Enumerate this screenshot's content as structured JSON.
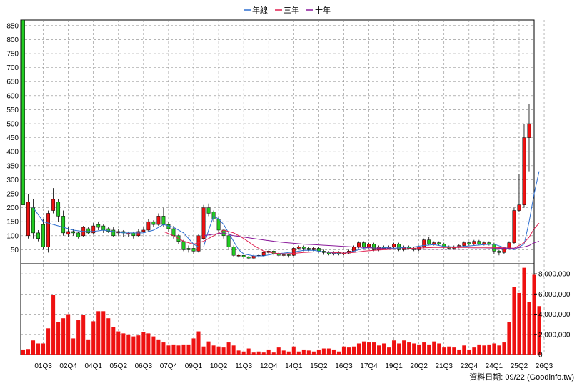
{
  "chart_data": {
    "type": "candlestick",
    "legend": [
      {
        "name": "年線",
        "color": "#2f6fd0"
      },
      {
        "name": "三年",
        "color": "#e02050"
      },
      {
        "name": "十年",
        "color": "#8a1a9a"
      }
    ],
    "legend_placement": "top-center",
    "grid": true,
    "colors": {
      "up": "#ee1111",
      "down": "#22cc22",
      "volume": "#ee1111"
    },
    "price_axis": {
      "ticks": [
        50,
        100,
        150,
        200,
        250,
        300,
        350,
        400,
        450,
        500,
        550,
        600,
        650,
        700,
        750,
        800,
        850
      ],
      "range": [
        0,
        870
      ]
    },
    "volume_axis": {
      "ticks": [
        2000000,
        4000000,
        6000000,
        8000000
      ],
      "tick_labels": [
        "2,000,000",
        "4,000,000",
        "6,000,000",
        "8,000,000"
      ],
      "range": [
        0,
        9000000
      ]
    },
    "x_ticks": [
      {
        "label": "01Q3",
        "i": 4
      },
      {
        "label": "02Q4",
        "i": 9
      },
      {
        "label": "04Q1",
        "i": 14
      },
      {
        "label": "05Q2",
        "i": 19
      },
      {
        "label": "06Q3",
        "i": 24
      },
      {
        "label": "07Q4",
        "i": 29
      },
      {
        "label": "09Q1",
        "i": 34
      },
      {
        "label": "10Q2",
        "i": 39
      },
      {
        "label": "11Q3",
        "i": 44
      },
      {
        "label": "12Q4",
        "i": 49
      },
      {
        "label": "14Q1",
        "i": 54
      },
      {
        "label": "15Q2",
        "i": 59
      },
      {
        "label": "16Q3",
        "i": 64
      },
      {
        "label": "17Q4",
        "i": 69
      },
      {
        "label": "19Q1",
        "i": 74
      },
      {
        "label": "20Q2",
        "i": 79
      },
      {
        "label": "21Q3",
        "i": 84
      },
      {
        "label": "22Q4",
        "i": 89
      },
      {
        "label": "24Q1",
        "i": 94
      },
      {
        "label": "25Q2",
        "i": 99
      },
      {
        "label": "26Q3",
        "i": 104
      }
    ],
    "candles": [
      [
        870,
        210,
        870,
        210
      ],
      [
        100,
        220,
        250,
        90
      ],
      [
        200,
        110,
        230,
        90
      ],
      [
        110,
        90,
        120,
        80
      ],
      [
        140,
        60,
        160,
        50
      ],
      [
        60,
        180,
        190,
        40
      ],
      [
        190,
        230,
        270,
        180
      ],
      [
        220,
        170,
        230,
        150
      ],
      [
        170,
        110,
        190,
        100
      ],
      [
        105,
        115,
        130,
        95
      ],
      [
        115,
        110,
        125,
        100
      ],
      [
        110,
        95,
        115,
        90
      ],
      [
        100,
        130,
        135,
        95
      ],
      [
        125,
        110,
        130,
        105
      ],
      [
        110,
        135,
        145,
        105
      ],
      [
        140,
        130,
        150,
        120
      ],
      [
        135,
        120,
        140,
        110
      ],
      [
        125,
        115,
        130,
        110
      ],
      [
        120,
        100,
        130,
        95
      ],
      [
        110,
        115,
        125,
        100
      ],
      [
        115,
        110,
        120,
        95
      ],
      [
        105,
        110,
        115,
        95
      ],
      [
        110,
        100,
        115,
        90
      ],
      [
        100,
        115,
        125,
        95
      ],
      [
        115,
        120,
        130,
        110
      ],
      [
        120,
        150,
        160,
        115
      ],
      [
        150,
        140,
        155,
        130
      ],
      [
        140,
        170,
        180,
        135
      ],
      [
        170,
        140,
        200,
        130
      ],
      [
        140,
        125,
        150,
        115
      ],
      [
        125,
        100,
        135,
        90
      ],
      [
        100,
        80,
        105,
        70
      ],
      [
        80,
        50,
        85,
        45
      ],
      [
        55,
        50,
        65,
        40
      ],
      [
        55,
        45,
        70,
        35
      ],
      [
        45,
        100,
        105,
        40
      ],
      [
        90,
        200,
        210,
        85
      ],
      [
        200,
        180,
        215,
        170
      ],
      [
        185,
        160,
        190,
        150
      ],
      [
        160,
        120,
        170,
        110
      ],
      [
        120,
        100,
        125,
        90
      ],
      [
        100,
        60,
        110,
        50
      ],
      [
        60,
        30,
        65,
        25
      ],
      [
        30,
        30,
        35,
        22
      ],
      [
        30,
        25,
        32,
        18
      ],
      [
        25,
        20,
        28,
        15
      ],
      [
        20,
        28,
        32,
        15
      ],
      [
        28,
        30,
        35,
        22
      ],
      [
        30,
        40,
        45,
        25
      ],
      [
        40,
        45,
        50,
        35
      ],
      [
        45,
        35,
        50,
        30
      ],
      [
        35,
        30,
        40,
        25
      ],
      [
        30,
        32,
        35,
        25
      ],
      [
        32,
        30,
        35,
        22
      ],
      [
        30,
        55,
        58,
        28
      ],
      [
        55,
        60,
        65,
        50
      ],
      [
        60,
        55,
        65,
        45
      ],
      [
        55,
        50,
        60,
        45
      ],
      [
        50,
        55,
        60,
        45
      ],
      [
        55,
        45,
        60,
        40
      ],
      [
        45,
        40,
        50,
        32
      ],
      [
        40,
        35,
        45,
        30
      ],
      [
        35,
        40,
        45,
        30
      ],
      [
        40,
        35,
        45,
        30
      ],
      [
        35,
        38,
        42,
        30
      ],
      [
        38,
        45,
        50,
        35
      ],
      [
        45,
        60,
        65,
        40
      ],
      [
        60,
        75,
        80,
        55
      ],
      [
        75,
        60,
        80,
        55
      ],
      [
        60,
        70,
        75,
        55
      ],
      [
        70,
        50,
        75,
        45
      ],
      [
        50,
        60,
        65,
        45
      ],
      [
        60,
        55,
        65,
        50
      ],
      [
        55,
        60,
        65,
        50
      ],
      [
        60,
        70,
        75,
        55
      ],
      [
        70,
        50,
        75,
        45
      ],
      [
        50,
        60,
        65,
        45
      ],
      [
        60,
        55,
        65,
        50
      ],
      [
        55,
        50,
        60,
        45
      ],
      [
        50,
        60,
        65,
        45
      ],
      [
        60,
        85,
        90,
        55
      ],
      [
        85,
        70,
        95,
        65
      ],
      [
        70,
        75,
        80,
        65
      ],
      [
        75,
        70,
        80,
        65
      ],
      [
        70,
        60,
        75,
        55
      ],
      [
        60,
        55,
        65,
        50
      ],
      [
        55,
        60,
        65,
        50
      ],
      [
        60,
        65,
        70,
        55
      ],
      [
        65,
        75,
        80,
        60
      ],
      [
        75,
        70,
        80,
        65
      ],
      [
        70,
        80,
        85,
        65
      ],
      [
        80,
        70,
        85,
        65
      ],
      [
        70,
        75,
        80,
        65
      ],
      [
        75,
        70,
        80,
        65
      ],
      [
        70,
        45,
        75,
        35
      ],
      [
        45,
        40,
        50,
        30
      ],
      [
        40,
        55,
        60,
        35
      ],
      [
        55,
        75,
        80,
        50
      ],
      [
        75,
        190,
        200,
        70
      ],
      [
        190,
        210,
        320,
        185
      ],
      [
        210,
        450,
        500,
        200
      ],
      [
        450,
        500,
        570,
        330
      ]
    ],
    "volumes": [
      500000,
      550000,
      1400000,
      1100000,
      1100000,
      2600000,
      5900000,
      3200000,
      3600000,
      4000000,
      1600000,
      3400000,
      3900000,
      1500000,
      3300000,
      4300000,
      4300000,
      3600000,
      2700000,
      2300000,
      2100000,
      2000000,
      1800000,
      1900000,
      2200000,
      2100000,
      1800000,
      1500000,
      1200000,
      900000,
      1000000,
      900000,
      1000000,
      1000000,
      1600000,
      2300000,
      800000,
      1300000,
      900000,
      800000,
      700000,
      1200000,
      900000,
      400000,
      300000,
      600000,
      200000,
      300000,
      200000,
      500000,
      200000,
      700000,
      400000,
      300000,
      800000,
      300000,
      500000,
      400000,
      300000,
      500000,
      600000,
      600000,
      500000,
      300000,
      800000,
      700000,
      800000,
      1100000,
      1300000,
      1200000,
      1200000,
      900000,
      1100000,
      700000,
      1400000,
      1100000,
      1400000,
      1200000,
      1100000,
      1000000,
      1200000,
      1000000,
      1300000,
      1100000,
      700000,
      800000,
      700000,
      500000,
      900000,
      500000,
      700000,
      1000000,
      900000,
      1000000,
      1100000,
      900000,
      1200000,
      3200000,
      6700000,
      6100000,
      8600000,
      5200000,
      7900000,
      4800000
    ],
    "ma_year": [
      [
        2,
        200
      ],
      [
        4,
        150
      ],
      [
        6,
        140
      ],
      [
        8,
        130
      ],
      [
        10,
        120
      ],
      [
        12,
        115
      ],
      [
        14,
        115
      ],
      [
        16,
        120
      ],
      [
        18,
        115
      ],
      [
        20,
        110
      ],
      [
        22,
        110
      ],
      [
        24,
        110
      ],
      [
        26,
        120
      ],
      [
        28,
        140
      ],
      [
        30,
        130
      ],
      [
        32,
        110
      ],
      [
        34,
        70
      ],
      [
        35,
        60
      ],
      [
        36,
        60
      ],
      [
        37,
        120
      ],
      [
        38,
        170
      ],
      [
        39,
        160
      ],
      [
        40,
        140
      ],
      [
        41,
        110
      ],
      [
        42,
        80
      ],
      [
        43,
        50
      ],
      [
        44,
        35
      ],
      [
        46,
        28
      ],
      [
        48,
        28
      ],
      [
        50,
        35
      ],
      [
        52,
        38
      ],
      [
        54,
        42
      ],
      [
        56,
        48
      ],
      [
        58,
        48
      ],
      [
        60,
        42
      ],
      [
        62,
        38
      ],
      [
        64,
        38
      ],
      [
        66,
        45
      ],
      [
        68,
        55
      ],
      [
        70,
        60
      ],
      [
        72,
        58
      ],
      [
        74,
        55
      ],
      [
        76,
        58
      ],
      [
        78,
        60
      ],
      [
        80,
        65
      ],
      [
        82,
        68
      ],
      [
        84,
        62
      ],
      [
        86,
        60
      ],
      [
        88,
        62
      ],
      [
        90,
        65
      ],
      [
        92,
        68
      ],
      [
        94,
        70
      ],
      [
        96,
        58
      ],
      [
        98,
        50
      ],
      [
        100,
        70
      ],
      [
        101,
        150
      ],
      [
        102,
        250
      ],
      [
        103,
        330
      ]
    ],
    "ma_3yr": [
      [
        28,
        115
      ],
      [
        30,
        100
      ],
      [
        32,
        80
      ],
      [
        34,
        70
      ],
      [
        36,
        80
      ],
      [
        38,
        100
      ],
      [
        40,
        120
      ],
      [
        42,
        110
      ],
      [
        44,
        90
      ],
      [
        46,
        65
      ],
      [
        48,
        45
      ],
      [
        50,
        38
      ],
      [
        52,
        35
      ],
      [
        54,
        37
      ],
      [
        56,
        40
      ],
      [
        58,
        42
      ],
      [
        60,
        42
      ],
      [
        62,
        40
      ],
      [
        64,
        38
      ],
      [
        66,
        40
      ],
      [
        68,
        45
      ],
      [
        70,
        48
      ],
      [
        72,
        50
      ],
      [
        74,
        52
      ],
      [
        76,
        53
      ],
      [
        78,
        55
      ],
      [
        80,
        57
      ],
      [
        82,
        58
      ],
      [
        84,
        58
      ],
      [
        86,
        58
      ],
      [
        88,
        58
      ],
      [
        90,
        58
      ],
      [
        92,
        58
      ],
      [
        94,
        58
      ],
      [
        96,
        57
      ],
      [
        98,
        55
      ],
      [
        100,
        75
      ],
      [
        101,
        95
      ],
      [
        102,
        125
      ],
      [
        103,
        145
      ]
    ],
    "ma_10yr": [
      [
        36,
        100
      ],
      [
        38,
        105
      ],
      [
        40,
        110
      ],
      [
        42,
        100
      ],
      [
        44,
        95
      ],
      [
        46,
        90
      ],
      [
        48,
        85
      ],
      [
        50,
        80
      ],
      [
        52,
        76
      ],
      [
        54,
        73
      ],
      [
        56,
        70
      ],
      [
        58,
        68
      ],
      [
        60,
        66
      ],
      [
        62,
        64
      ],
      [
        64,
        62
      ],
      [
        66,
        60
      ],
      [
        68,
        58
      ],
      [
        70,
        56
      ],
      [
        72,
        54
      ],
      [
        74,
        53
      ],
      [
        76,
        53
      ],
      [
        78,
        52
      ],
      [
        80,
        52
      ],
      [
        82,
        52
      ],
      [
        84,
        52
      ],
      [
        86,
        52
      ],
      [
        88,
        52
      ],
      [
        90,
        53
      ],
      [
        92,
        53
      ],
      [
        94,
        54
      ],
      [
        96,
        55
      ],
      [
        98,
        55
      ],
      [
        100,
        60
      ],
      [
        101,
        65
      ],
      [
        102,
        75
      ],
      [
        103,
        80
      ]
    ]
  },
  "footer": {
    "text": "資料日期: 09/22 (Goodinfo.tw)"
  }
}
